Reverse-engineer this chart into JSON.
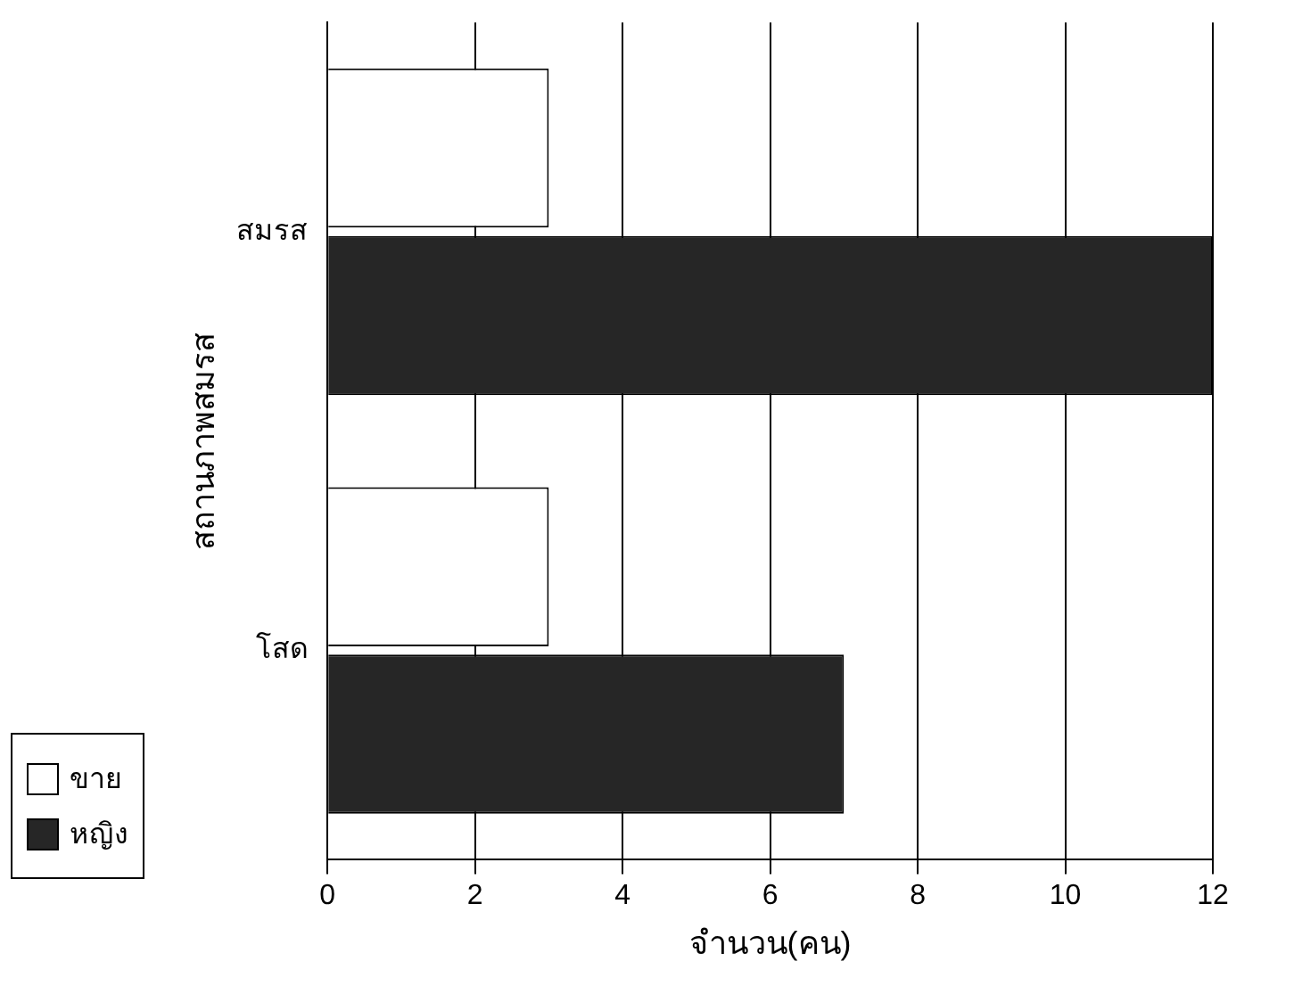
{
  "chart_data": {
    "type": "bar",
    "orientation": "horizontal",
    "xlabel": "จำนวน(คน)",
    "ylabel": "สถานภาพสมรส",
    "categories": [
      "สมรส",
      "โสด"
    ],
    "series": [
      {
        "name": "ขาย",
        "color": "#ffffff",
        "values": [
          3,
          3
        ]
      },
      {
        "name": "หญิง",
        "color": "#262626",
        "values": [
          12,
          7
        ]
      }
    ],
    "xlim": [
      0,
      12
    ],
    "xticks": [
      0,
      2,
      4,
      6,
      8,
      10,
      12
    ],
    "grid": "x",
    "legend": "bottom left"
  }
}
